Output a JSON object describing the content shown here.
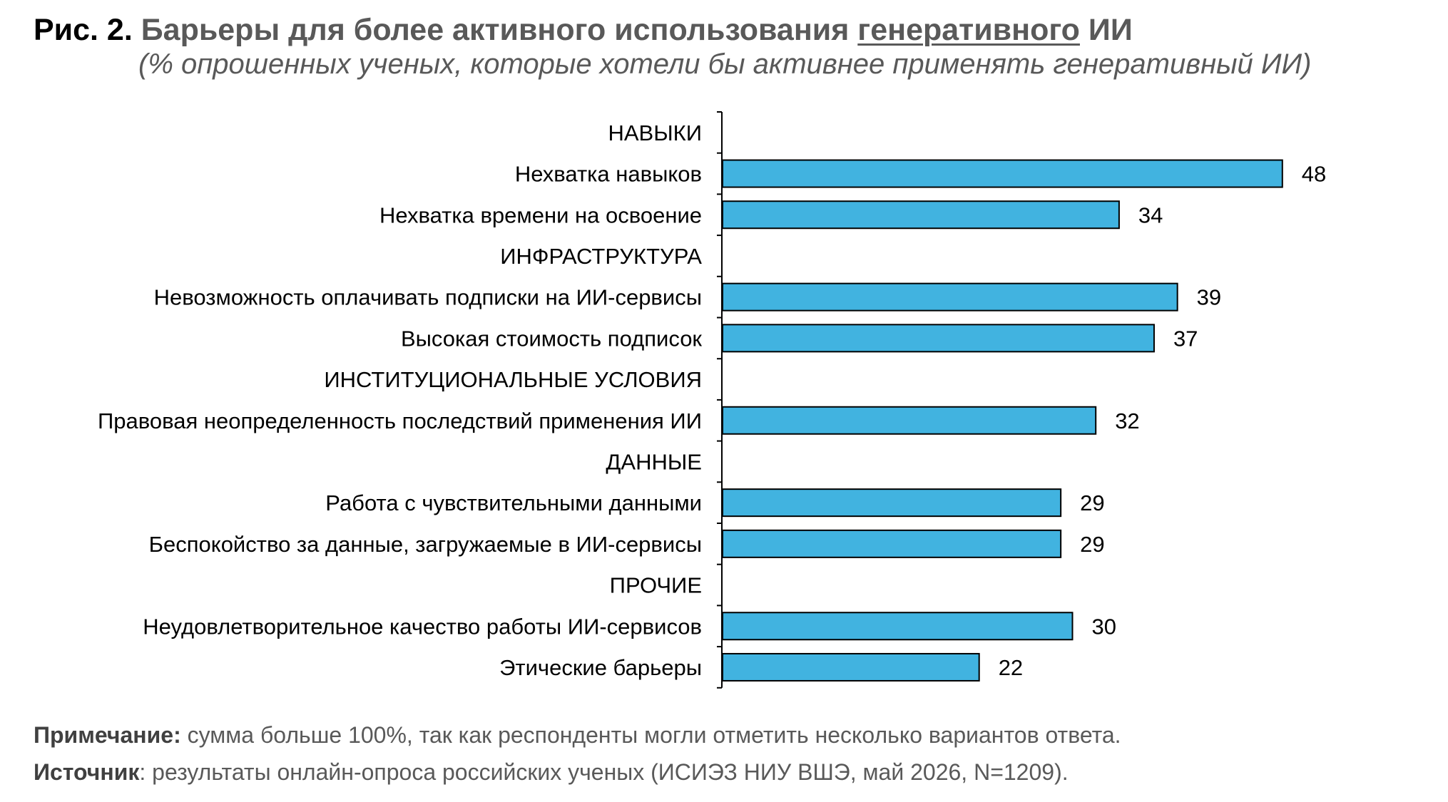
{
  "header": {
    "fig_label": "Рис. 2.",
    "title_before": "Барьеры для более активного использования",
    "title_underlined": "генеративного",
    "title_after": "ИИ",
    "subtitle": "(% опрошенных ученых, которые хотели бы активнее применять генеративный ИИ)"
  },
  "chart_data": {
    "type": "bar",
    "orientation": "horizontal",
    "bar_color": "#41b3e0",
    "grid": false,
    "rows": [
      {
        "kind": "group",
        "label": "НАВЫКИ"
      },
      {
        "kind": "bar",
        "label": "Нехватка навыков",
        "value": 48
      },
      {
        "kind": "bar",
        "label": "Нехватка времени на освоение",
        "value": 34
      },
      {
        "kind": "group",
        "label": "ИНФРАСТРУКТУРА"
      },
      {
        "kind": "bar",
        "label": "Невозможность оплачивать подписки на ИИ-сервисы",
        "value": 39
      },
      {
        "kind": "bar",
        "label": "Высокая стоимость подписок",
        "value": 37
      },
      {
        "kind": "group",
        "label": "ИНСТИТУЦИОНАЛЬНЫЕ УСЛОВИЯ"
      },
      {
        "kind": "bar",
        "label": "Правовая неопределенность последствий применения ИИ",
        "value": 32
      },
      {
        "kind": "group",
        "label": "ДАННЫЕ"
      },
      {
        "kind": "bar",
        "label": "Работа с чувствительными данными",
        "value": 29
      },
      {
        "kind": "bar",
        "label": "Беспокойство за данные, загружаемые в ИИ-сервисы",
        "value": 29
      },
      {
        "kind": "group",
        "label": "ПРОЧИЕ"
      },
      {
        "kind": "bar",
        "label": "Неудовлетворительное качество работы ИИ-сервисов",
        "value": 30
      },
      {
        "kind": "bar",
        "label": "Этические барьеры",
        "value": 22
      }
    ]
  },
  "footer": {
    "note_label": "Примечание:",
    "note_text": " сумма больше 100%, так как респонденты могли отметить несколько вариантов ответа.",
    "source_label": "Источник",
    "source_text": ": результаты онлайн-опроса российских ученых (ИСИЭЗ НИУ ВШЭ, май 2026, N=1209)."
  }
}
